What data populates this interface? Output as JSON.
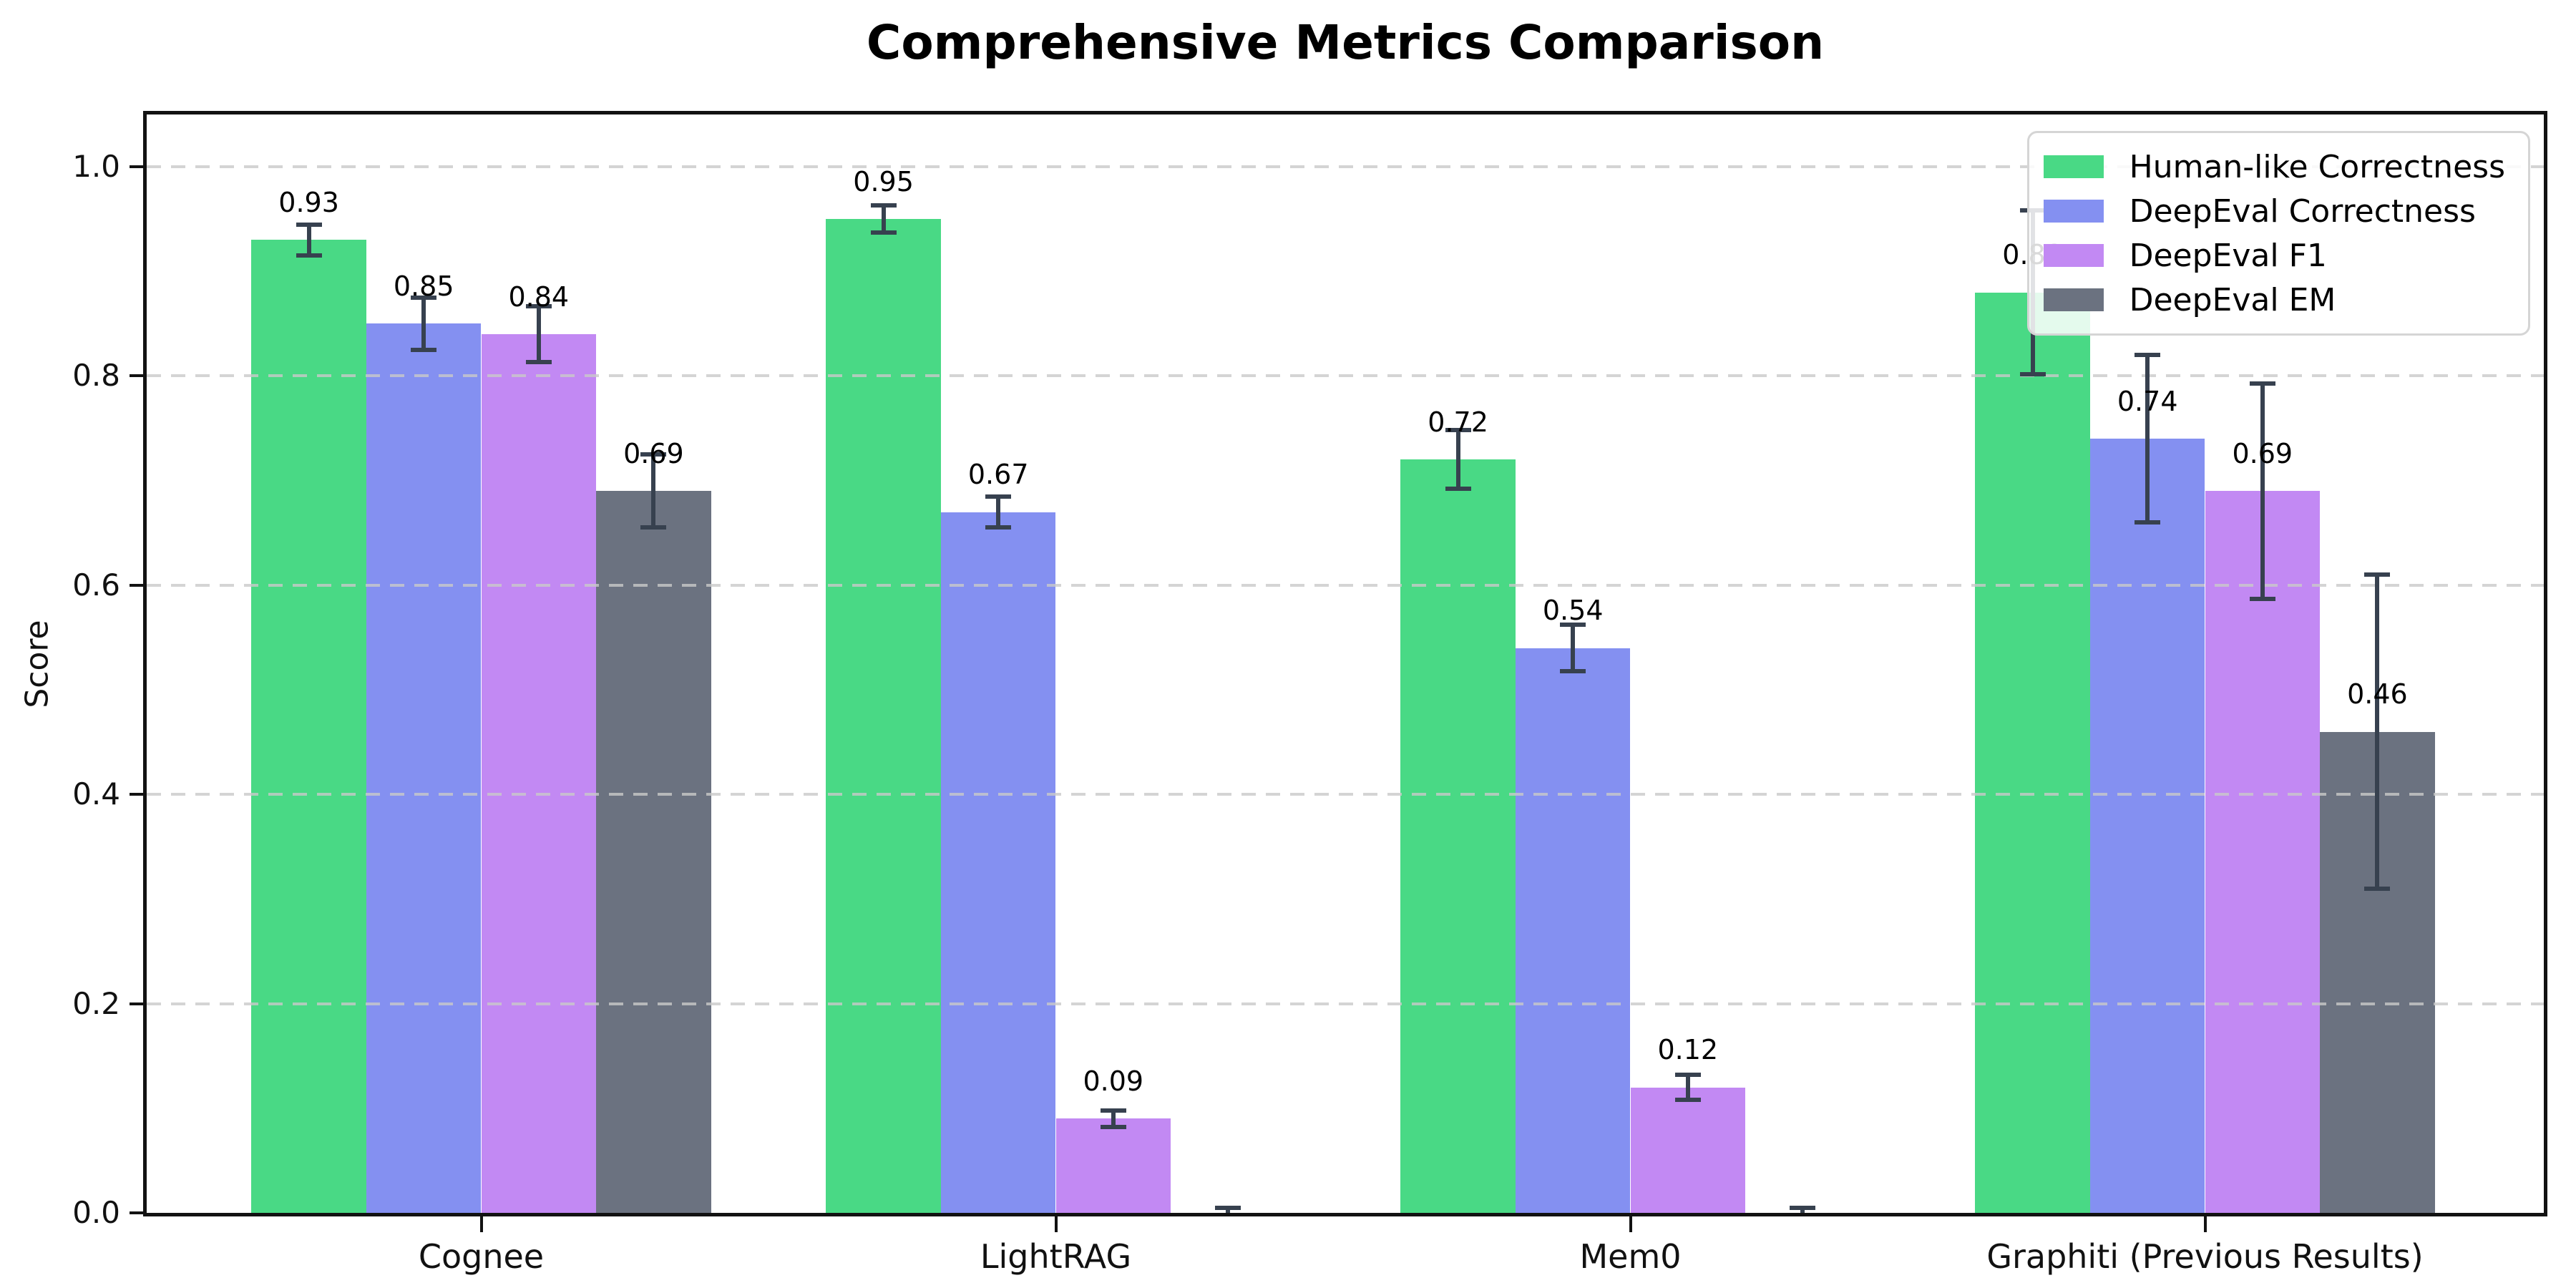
{
  "chart_data": {
    "type": "bar",
    "title": "Comprehensive Metrics Comparison",
    "xlabel": "",
    "ylabel": "Score",
    "categories": [
      "Cognee",
      "LightRAG",
      "Mem0",
      "Graphiti (Previous Results)"
    ],
    "series": [
      {
        "name": "Human-like Correctness",
        "color": "#49d985",
        "values": [
          0.93,
          0.95,
          0.72,
          0.88
        ],
        "errors": [
          0.015,
          0.013,
          0.028,
          0.078
        ],
        "labels": [
          "0.93",
          "0.95",
          "0.72",
          "0.88"
        ]
      },
      {
        "name": "DeepEval Correctness",
        "color": "#8490f1",
        "values": [
          0.85,
          0.67,
          0.54,
          0.74
        ],
        "errors": [
          0.025,
          0.015,
          0.022,
          0.08
        ],
        "labels": [
          "0.85",
          "0.67",
          "0.54",
          "0.74"
        ]
      },
      {
        "name": "DeepEval F1",
        "color": "#c289f3",
        "values": [
          0.84,
          0.09,
          0.12,
          0.69
        ],
        "errors": [
          0.027,
          0.008,
          0.012,
          0.103
        ],
        "labels": [
          "0.84",
          "0.09",
          "0.12",
          "0.69"
        ]
      },
      {
        "name": "DeepEval EM",
        "color": "#6b7280",
        "values": [
          0.69,
          0.0,
          0.0,
          0.46
        ],
        "errors": [
          0.035,
          0.005,
          0.005,
          0.15
        ],
        "labels": [
          "0.69",
          "",
          "",
          "0.46"
        ]
      }
    ],
    "ylim": [
      0,
      1.05
    ],
    "yticks": [
      "0.0",
      "0.2",
      "0.4",
      "0.6",
      "0.8",
      "1.0"
    ],
    "grid": "dashed-horizontal",
    "legend_position": "upper right",
    "colors": {
      "error_bar": "#37414f",
      "gridline": "#c9c9c9",
      "spine": "#121212",
      "background": "#ffffff"
    }
  }
}
